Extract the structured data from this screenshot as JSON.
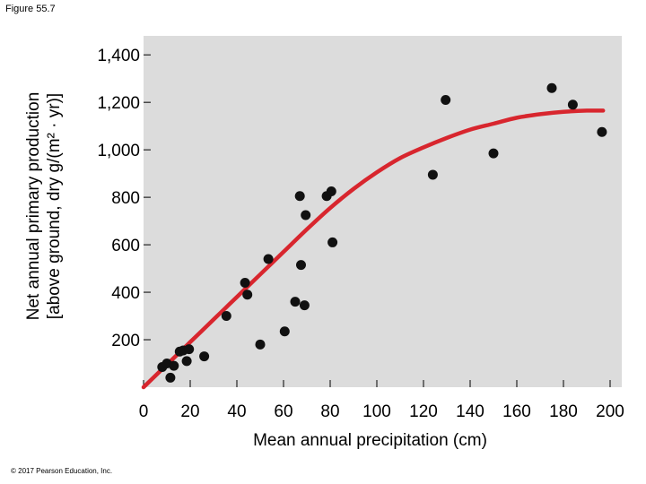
{
  "figure_label": "Figure 55.7",
  "copyright": "© 2017 Pearson Education, Inc.",
  "colors": {
    "plot_bg": "#dcdcdc",
    "curve": "#d8262e",
    "point": "#111111",
    "axis": "#000000"
  },
  "chart_data": {
    "type": "scatter",
    "title": "",
    "xlabel": "Mean annual precipitation (cm)",
    "ylabel_lines": [
      "Net annual primary production",
      "[above ground, dry g/(m² · yr)]"
    ],
    "xlim": [
      0,
      205
    ],
    "ylim": [
      0,
      1480
    ],
    "x_ticks": [
      0,
      20,
      40,
      60,
      80,
      100,
      120,
      140,
      160,
      180,
      200
    ],
    "x_tick_labels": [
      "0",
      "20",
      "40",
      "60",
      "80",
      "100",
      "120",
      "140",
      "160",
      "180",
      "200"
    ],
    "y_ticks": [
      200,
      400,
      600,
      800,
      1000,
      1200,
      1400
    ],
    "y_tick_labels": [
      "200",
      "400",
      "600",
      "800",
      "1,000",
      "1,200",
      "1,400"
    ],
    "points": [
      {
        "x": 8,
        "y": 85
      },
      {
        "x": 10,
        "y": 100
      },
      {
        "x": 11.5,
        "y": 40
      },
      {
        "x": 13,
        "y": 90
      },
      {
        "x": 15.5,
        "y": 150
      },
      {
        "x": 17,
        "y": 155
      },
      {
        "x": 18.5,
        "y": 110
      },
      {
        "x": 19.5,
        "y": 160
      },
      {
        "x": 26,
        "y": 130
      },
      {
        "x": 35.5,
        "y": 300
      },
      {
        "x": 43.5,
        "y": 440
      },
      {
        "x": 44.5,
        "y": 390
      },
      {
        "x": 50,
        "y": 180
      },
      {
        "x": 53.5,
        "y": 540
      },
      {
        "x": 60.5,
        "y": 235
      },
      {
        "x": 65,
        "y": 360
      },
      {
        "x": 67,
        "y": 805
      },
      {
        "x": 67.5,
        "y": 515
      },
      {
        "x": 69,
        "y": 345
      },
      {
        "x": 69.5,
        "y": 725
      },
      {
        "x": 78.5,
        "y": 805
      },
      {
        "x": 80.5,
        "y": 825
      },
      {
        "x": 81,
        "y": 610
      },
      {
        "x": 124,
        "y": 895
      },
      {
        "x": 129.5,
        "y": 1210
      },
      {
        "x": 150,
        "y": 985
      },
      {
        "x": 175,
        "y": 1260
      },
      {
        "x": 184,
        "y": 1190
      },
      {
        "x": 196.5,
        "y": 1075
      }
    ],
    "fit_curve": [
      {
        "x": 0,
        "y": 0
      },
      {
        "x": 10,
        "y": 95
      },
      {
        "x": 20,
        "y": 190
      },
      {
        "x": 30,
        "y": 285
      },
      {
        "x": 40,
        "y": 380
      },
      {
        "x": 50,
        "y": 475
      },
      {
        "x": 60,
        "y": 570
      },
      {
        "x": 70,
        "y": 665
      },
      {
        "x": 80,
        "y": 755
      },
      {
        "x": 90,
        "y": 835
      },
      {
        "x": 100,
        "y": 905
      },
      {
        "x": 110,
        "y": 965
      },
      {
        "x": 120,
        "y": 1010
      },
      {
        "x": 130,
        "y": 1050
      },
      {
        "x": 140,
        "y": 1085
      },
      {
        "x": 150,
        "y": 1110
      },
      {
        "x": 160,
        "y": 1135
      },
      {
        "x": 170,
        "y": 1150
      },
      {
        "x": 180,
        "y": 1160
      },
      {
        "x": 190,
        "y": 1165
      },
      {
        "x": 197,
        "y": 1165
      }
    ]
  }
}
